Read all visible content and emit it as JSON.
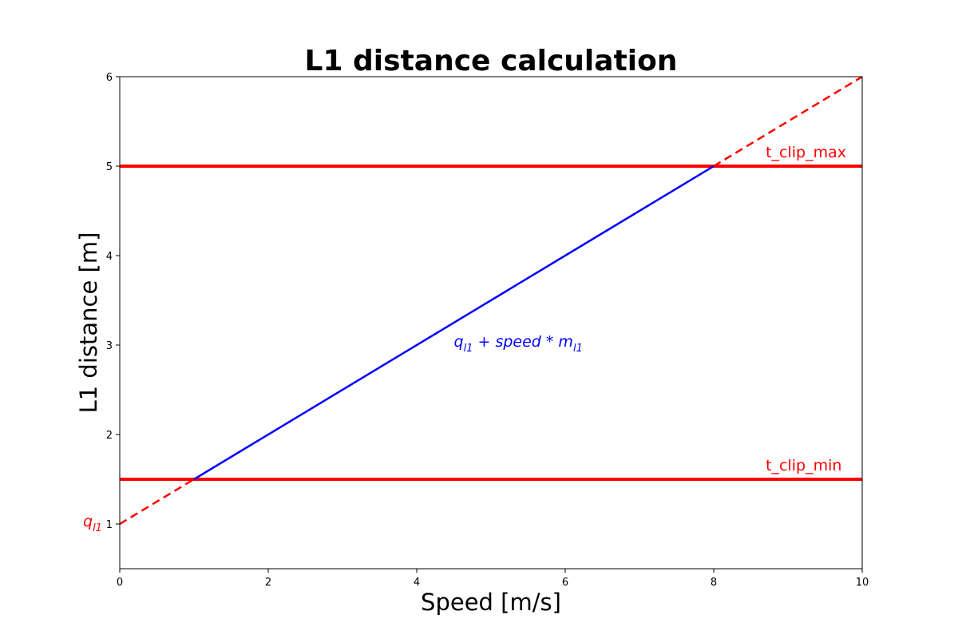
{
  "chart_data": {
    "type": "line",
    "title": "L1 distance calculation",
    "xlabel": "Speed [m/s]",
    "ylabel": "L1 distance [m]",
    "xlim": [
      0,
      10
    ],
    "ylim": [
      0.5,
      6
    ],
    "xticks": [
      0,
      2,
      4,
      6,
      8,
      10
    ],
    "yticks": [
      1,
      2,
      3,
      4,
      5,
      6
    ],
    "grid": false,
    "legend": "none",
    "series": [
      {
        "style": "solid",
        "color": "#0000ff",
        "x": [
          1,
          8
        ],
        "y": [
          1.5,
          5
        ]
      },
      {
        "style": "dashed",
        "color": "#ff0000",
        "x": [
          0,
          1
        ],
        "y": [
          1,
          1.5
        ]
      },
      {
        "style": "dashed",
        "color": "#ff0000",
        "x": [
          8,
          10
        ],
        "y": [
          5,
          6
        ]
      }
    ],
    "hlines": [
      {
        "y": 5,
        "color": "#ff0000",
        "label": "t_clip_max"
      },
      {
        "y": 1.5,
        "color": "#ff0000",
        "label": "t_clip_min"
      }
    ],
    "annotations": {
      "formula": {
        "base": "q",
        "sub": "l1",
        "mid": " + speed * m",
        "sub2": "l1",
        "x": 4.5,
        "y": 3.0,
        "color": "#0000ff"
      },
      "intercept": {
        "base": "q",
        "sub": "l1",
        "y": 1,
        "color": "#ff0000"
      },
      "clip_max_anchor": {
        "x": 8.7,
        "y": 5.1
      },
      "clip_min_anchor": {
        "x": 8.7,
        "y": 1.6
      }
    }
  }
}
